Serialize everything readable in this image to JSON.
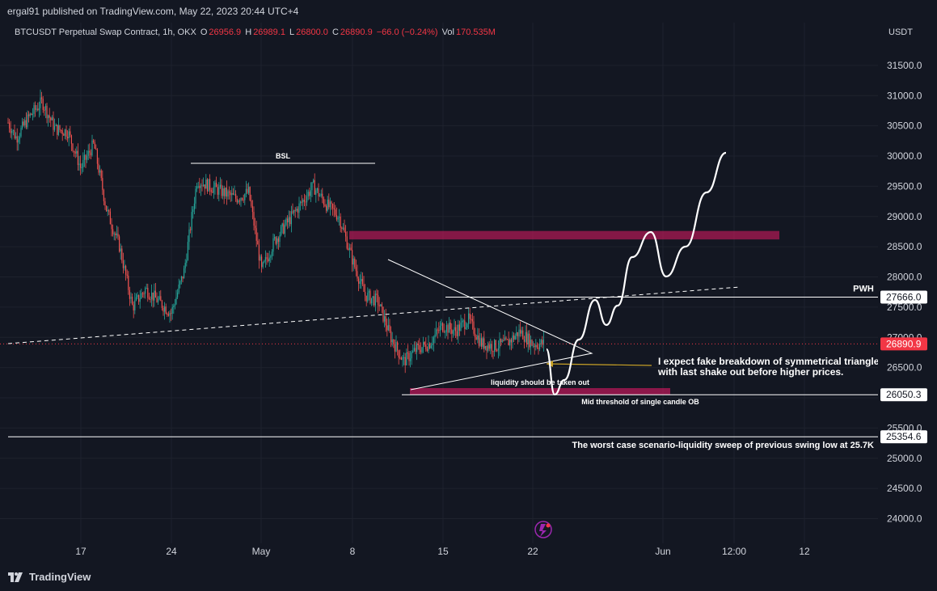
{
  "header": {
    "published": "ergal91 published on TradingView.com, May 22, 2023 20:44 UTC+4"
  },
  "legend": {
    "symbol": "BTCUSDT Perpetual Swap Contract, 1h, OKX",
    "o_label": "O",
    "o": "26956.9",
    "h_label": "H",
    "h": "26989.1",
    "l_label": "L",
    "l": "26800.0",
    "c_label": "C",
    "c": "26890.9",
    "change": "−66.0 (−0.24%)",
    "vol_label": "Vol",
    "vol": "170.535M"
  },
  "price_axis": {
    "currency": "USDT"
  },
  "brand": {
    "name": "TradingView"
  },
  "colors": {
    "background": "#131722",
    "up": "#26a69a",
    "down": "#ef5350",
    "zone": "#c2185b",
    "current_price": "#f23645",
    "text": "#d1d4dc",
    "arrow": "#c9a227"
  },
  "chart_data": {
    "type": "candlestick",
    "symbol": "BTCUSDT",
    "timeframe": "1h",
    "ylim": [
      23750,
      32000
    ],
    "y_ticks": [
      24000,
      24500,
      25000,
      25500,
      26000,
      26500,
      27000,
      27500,
      28000,
      28500,
      29000,
      29500,
      30000,
      30500,
      31000,
      31500
    ],
    "x_ticks": [
      "17",
      "24",
      "May",
      "8",
      "15",
      "22",
      "Jun",
      "12:00",
      "12"
    ],
    "price_labels": [
      {
        "value": 27666.0,
        "label": "27666.0"
      },
      {
        "value": 26890.9,
        "label": "26890.9",
        "current": true
      },
      {
        "value": 26050.3,
        "label": "26050.3"
      },
      {
        "value": 25354.6,
        "label": "25354.6"
      }
    ],
    "price_path": [
      [
        "2023-04-10",
        30500
      ],
      [
        "2023-04-11",
        30700
      ],
      [
        "2023-04-12",
        30300
      ],
      [
        "2023-04-13",
        30650
      ],
      [
        "2023-04-14",
        30900
      ],
      [
        "2023-04-15",
        30450
      ],
      [
        "2023-04-16",
        30400
      ],
      [
        "2023-04-17",
        29800
      ],
      [
        "2023-04-18",
        30200
      ],
      [
        "2023-04-19",
        29100
      ],
      [
        "2023-04-20",
        28500
      ],
      [
        "2023-04-21",
        27500
      ],
      [
        "2023-04-22",
        27800
      ],
      [
        "2023-04-23",
        27600
      ],
      [
        "2023-04-24",
        27400
      ],
      [
        "2023-04-25",
        28100
      ],
      [
        "2023-04-26",
        29600
      ],
      [
        "2023-04-27",
        29500
      ],
      [
        "2023-04-28",
        29400
      ],
      [
        "2023-04-29",
        29300
      ],
      [
        "2023-04-30",
        29400
      ],
      [
        "2023-05-01",
        28100
      ],
      [
        "2023-05-02",
        28600
      ],
      [
        "2023-05-03",
        28900
      ],
      [
        "2023-05-04",
        29200
      ],
      [
        "2023-05-05",
        29500
      ],
      [
        "2023-05-06",
        29200
      ],
      [
        "2023-05-07",
        29000
      ],
      [
        "2023-05-08",
        28300
      ],
      [
        "2023-05-09",
        27700
      ],
      [
        "2023-05-10",
        27600
      ],
      [
        "2023-05-11",
        27000
      ],
      [
        "2023-05-12",
        26600
      ],
      [
        "2023-05-13",
        26800
      ],
      [
        "2023-05-14",
        26900
      ],
      [
        "2023-05-15",
        27200
      ],
      [
        "2023-05-16",
        27100
      ],
      [
        "2023-05-17",
        27300
      ],
      [
        "2023-05-18",
        26900
      ],
      [
        "2023-05-19",
        26850
      ],
      [
        "2023-05-20",
        26900
      ],
      [
        "2023-05-21",
        27100
      ],
      [
        "2023-05-22",
        26890.9
      ]
    ],
    "annotations": {
      "bsl_label": "BSL",
      "pwh_label": "PWH",
      "liquidity_note": "liquidity should be taken out",
      "ob_note": "Mid threshold of single candle OB",
      "expectation_line1": "I expect fake breakdown of symmetrical triangle",
      "expectation_line2": "with last shake out before higher prices.",
      "worst_case": "The worst case scenario-liquidity sweep of previous swing low at 25.7K"
    },
    "levels": {
      "bsl": 29880,
      "pwh": 27666.0,
      "ob_mid": 26050.3,
      "swing_low": 25354.6,
      "supply_zone": [
        28620,
        28760
      ],
      "ob_zone": [
        26050,
        26160
      ]
    },
    "projection": [
      [
        "2023-05-23",
        26100
      ],
      [
        "2023-05-24",
        26650
      ],
      [
        "2023-05-25",
        27500
      ],
      [
        "2023-05-26",
        27250
      ],
      [
        "2023-05-27",
        27600
      ],
      [
        "2023-05-28",
        28500
      ],
      [
        "2023-05-29",
        28700
      ],
      [
        "2023-05-30",
        28050
      ],
      [
        "2023-05-31",
        28300
      ],
      [
        "2023-06-01",
        28800
      ],
      [
        "2023-06-02",
        29400
      ],
      [
        "2023-06-03",
        30050
      ]
    ]
  }
}
